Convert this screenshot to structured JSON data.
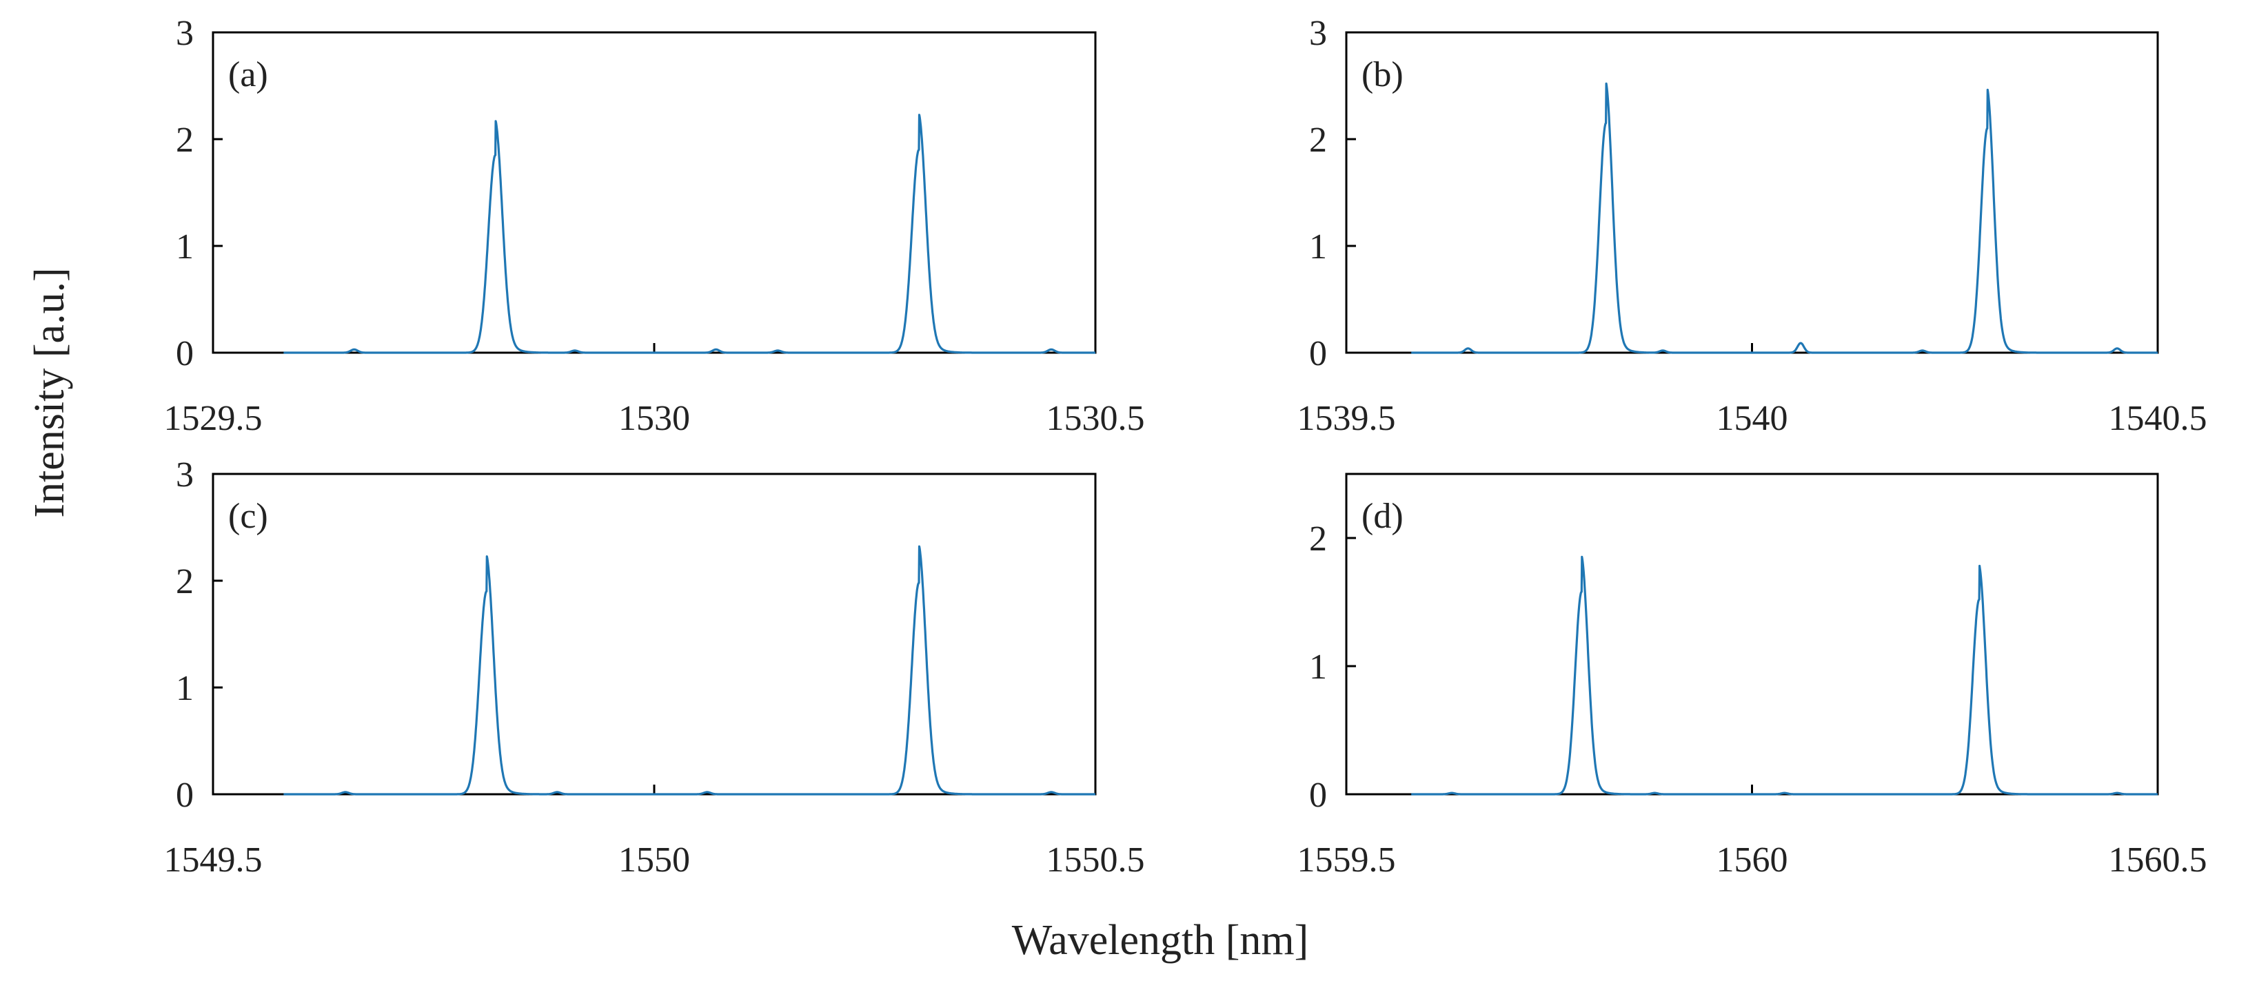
{
  "figure": {
    "ylabel": "Intensity [a.u.]",
    "xlabel": "Wavelength [nm]",
    "line_color": "#1f77b4",
    "axis_color": "#000000"
  },
  "chart_data": [
    {
      "type": "line",
      "panel_label": "(a)",
      "xlim": [
        1529.5,
        1530.5
      ],
      "ylim": [
        0,
        3
      ],
      "xticks": [
        1529.5,
        1530,
        1530.5
      ],
      "xtick_labels": [
        "1529.5",
        "1530",
        "1530.5"
      ],
      "yticks": [
        0,
        1,
        2,
        3
      ],
      "ytick_labels": [
        "0",
        "1",
        "2",
        "3"
      ],
      "baseline_range": [
        1529.58,
        1530.5
      ],
      "peaks": [
        {
          "center": 1529.82,
          "height": 1.85,
          "width": 0.008
        },
        {
          "center": 1530.3,
          "height": 1.9,
          "width": 0.008
        }
      ],
      "bumps": [
        {
          "center": 1529.66,
          "height": 0.03
        },
        {
          "center": 1529.91,
          "height": 0.02
        },
        {
          "center": 1530.07,
          "height": 0.03
        },
        {
          "center": 1530.14,
          "height": 0.02
        },
        {
          "center": 1530.45,
          "height": 0.03
        }
      ]
    },
    {
      "type": "line",
      "panel_label": "(b)",
      "xlim": [
        1539.5,
        1540.5
      ],
      "ylim": [
        0,
        3
      ],
      "xticks": [
        1539.5,
        1540,
        1540.5
      ],
      "xtick_labels": [
        "1539.5",
        "1540",
        "1540.5"
      ],
      "yticks": [
        0,
        1,
        2,
        3
      ],
      "ytick_labels": [
        "0",
        "1",
        "2",
        "3"
      ],
      "baseline_range": [
        1539.58,
        1540.5
      ],
      "peaks": [
        {
          "center": 1539.82,
          "height": 2.15,
          "width": 0.008
        },
        {
          "center": 1540.29,
          "height": 2.1,
          "width": 0.008
        }
      ],
      "bumps": [
        {
          "center": 1539.65,
          "height": 0.04
        },
        {
          "center": 1539.89,
          "height": 0.02
        },
        {
          "center": 1540.06,
          "height": 0.09
        },
        {
          "center": 1540.21,
          "height": 0.02
        },
        {
          "center": 1540.45,
          "height": 0.04
        }
      ]
    },
    {
      "type": "line",
      "panel_label": "(c)",
      "xlim": [
        1549.5,
        1550.5
      ],
      "ylim": [
        0,
        3
      ],
      "xticks": [
        1549.5,
        1550,
        1550.5
      ],
      "xtick_labels": [
        "1549.5",
        "1550",
        "1550.5"
      ],
      "yticks": [
        0,
        1,
        2,
        3
      ],
      "ytick_labels": [
        "0",
        "1",
        "2",
        "3"
      ],
      "baseline_range": [
        1549.58,
        1550.5
      ],
      "peaks": [
        {
          "center": 1549.81,
          "height": 1.9,
          "width": 0.008
        },
        {
          "center": 1550.3,
          "height": 1.98,
          "width": 0.008
        }
      ],
      "bumps": [
        {
          "center": 1549.65,
          "height": 0.02
        },
        {
          "center": 1549.89,
          "height": 0.02
        },
        {
          "center": 1550.06,
          "height": 0.02
        },
        {
          "center": 1550.45,
          "height": 0.02
        }
      ]
    },
    {
      "type": "line",
      "panel_label": "(d)",
      "xlim": [
        1559.5,
        1560.5
      ],
      "ylim": [
        0,
        2.5
      ],
      "xticks": [
        1559.5,
        1560,
        1560.5
      ],
      "xtick_labels": [
        "1559.5",
        "1560",
        "1560.5"
      ],
      "yticks": [
        0,
        1,
        2
      ],
      "ytick_labels": [
        "0",
        "1",
        "2"
      ],
      "baseline_range": [
        1559.58,
        1560.5
      ],
      "peaks": [
        {
          "center": 1559.79,
          "height": 1.58,
          "width": 0.008
        },
        {
          "center": 1560.28,
          "height": 1.52,
          "width": 0.008
        }
      ],
      "bumps": [
        {
          "center": 1559.63,
          "height": 0.01
        },
        {
          "center": 1559.88,
          "height": 0.01
        },
        {
          "center": 1560.04,
          "height": 0.01
        },
        {
          "center": 1560.45,
          "height": 0.01
        }
      ]
    }
  ]
}
